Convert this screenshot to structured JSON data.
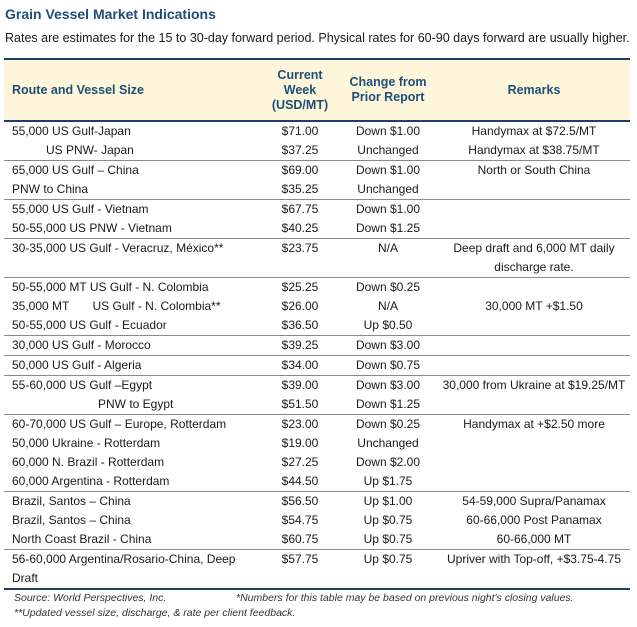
{
  "title": "Grain Vessel Market Indications",
  "subtitle": "Rates are estimates for the 15 to 30-day forward period. Physical rates for 60-90 days forward are usually higher.",
  "headers": {
    "route": "Route and Vessel Size",
    "current_week": "Current Week (USD/MT)",
    "change": "Change from Prior Report",
    "remarks": "Remarks"
  },
  "groups": [
    {
      "rows": [
        {
          "route": "55,000 US Gulf-Japan",
          "price": "$71.00",
          "change": "Down $1.00",
          "remark": "Handymax at $72.5/MT"
        },
        {
          "route": "US PNW- Japan",
          "price": "$37.25",
          "change": "Unchanged",
          "remark": "Handymax at $38.75/MT"
        }
      ]
    },
    {
      "rows": [
        {
          "route": "65,000 US Gulf – China",
          "price": "$69.00",
          "change": "Down $1.00",
          "remark": "North or South China"
        },
        {
          "route": "PNW to China",
          "price": "$35.25",
          "change": "Unchanged",
          "remark": ""
        }
      ]
    },
    {
      "rows": [
        {
          "route": "55,000 US Gulf - Vietnam",
          "price": "$67.75",
          "change": "Down $1.00",
          "remark": ""
        },
        {
          "route": "50-55,000 US PNW - Vietnam",
          "price": "$40.25",
          "change": "Down $1.25",
          "remark": ""
        }
      ]
    },
    {
      "rows": [
        {
          "route": "30-35,000 US Gulf - Veracruz, México**",
          "price": "$23.75",
          "change": "N/A",
          "remark": "Deep draft and 6,000 MT daily discharge rate."
        }
      ]
    },
    {
      "rows": [
        {
          "route": "50-55,000 MT US Gulf - N. Colombia",
          "price": "$25.25",
          "change": "Down $0.25",
          "remark": ""
        },
        {
          "route": "35,000 MT       US Gulf - N. Colombia**",
          "price": "$26.00",
          "change": "N/A",
          "remark": "30,000 MT +$1.50"
        },
        {
          "route": "50-55,000 US Gulf - Ecuador",
          "price": "$36.50",
          "change": "Up $0.50",
          "remark": ""
        }
      ]
    },
    {
      "rows": [
        {
          "route": "30,000 US Gulf - Morocco",
          "price": "$39.25",
          "change": "Down $3.00",
          "remark": ""
        }
      ]
    },
    {
      "rows": [
        {
          "route": "50,000 US Gulf - Algeria",
          "price": "$34.00",
          "change": "Down $0.75",
          "remark": ""
        }
      ]
    },
    {
      "rows": [
        {
          "route": "55-60,000 US Gulf –Egypt",
          "price": "$39.00",
          "change": "Down $3.00",
          "remark": "30,000 from Ukraine at $19.25/MT"
        },
        {
          "route": "PNW to Egypt",
          "price": "$51.50",
          "change": "Down $1.25",
          "remark": ""
        }
      ]
    },
    {
      "rows": [
        {
          "route": "60-70,000 US Gulf – Europe, Rotterdam",
          "price": "$23.00",
          "change": "Down $0.25",
          "remark": "Handymax at +$2.50 more"
        },
        {
          "route": "50,000 Ukraine - Rotterdam",
          "price": "$19.00",
          "change": "Unchanged",
          "remark": ""
        },
        {
          "route": "60,000 N. Brazil - Rotterdam",
          "price": "$27.25",
          "change": "Down $2.00",
          "remark": ""
        },
        {
          "route": "60,000 Argentina - Rotterdam",
          "price": "$44.50",
          "change": "Up $1.75",
          "remark": ""
        }
      ]
    },
    {
      "rows": [
        {
          "route": "Brazil, Santos – China",
          "price": "$56.50",
          "change": "Up $1.00",
          "remark": "54-59,000 Supra/Panamax"
        },
        {
          "route": "Brazil, Santos – China",
          "price": "$54.75",
          "change": "Up $0.75",
          "remark": "60-66,000 Post Panamax"
        },
        {
          "route": "North Coast Brazil - China",
          "price": "$60.75",
          "change": "Up $0.75",
          "remark": "60-66,000 MT"
        }
      ]
    },
    {
      "rows": [
        {
          "route": "56-60,000 Argentina/Rosario-China, Deep Draft",
          "price": "$57.75",
          "change": "Up $0.75",
          "remark": "Upriver with Top-off, +$3.75-4.75"
        }
      ]
    }
  ],
  "footer": {
    "source": "Source: World Perspectives, Inc.",
    "note1": "*Numbers for this table may be based on previous night's closing values.",
    "note2": "**Updated vessel size, discharge, & rate per client feedback."
  }
}
